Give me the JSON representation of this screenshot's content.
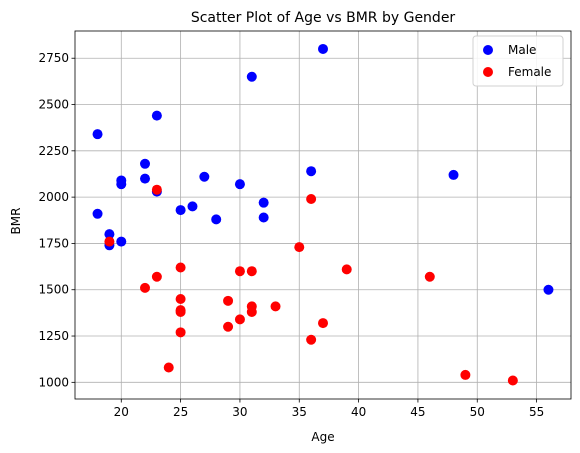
{
  "chart_data": {
    "type": "scatter",
    "title": "Scatter Plot of Age vs BMR by Gender",
    "xlabel": "Age",
    "ylabel": "BMR",
    "xlim": [
      16.1,
      57.9
    ],
    "ylim": [
      910,
      2897
    ],
    "xticks": [
      20,
      25,
      30,
      35,
      40,
      45,
      50,
      55
    ],
    "yticks": [
      1000,
      1250,
      1500,
      1750,
      2000,
      2250,
      2500,
      2750
    ],
    "grid": true,
    "legend_position": "top-right",
    "series": [
      {
        "name": "Male",
        "color": "#0000ff",
        "points": [
          [
            18,
            2340
          ],
          [
            18,
            1910
          ],
          [
            19,
            1800
          ],
          [
            19,
            1740
          ],
          [
            20,
            2090
          ],
          [
            20,
            2070
          ],
          [
            20,
            1760
          ],
          [
            22,
            2180
          ],
          [
            22,
            2100
          ],
          [
            23,
            2440
          ],
          [
            23,
            2030
          ],
          [
            25,
            1930
          ],
          [
            26,
            1950
          ],
          [
            27,
            2110
          ],
          [
            28,
            1880
          ],
          [
            30,
            2070
          ],
          [
            31,
            2650
          ],
          [
            32,
            1970
          ],
          [
            32,
            1890
          ],
          [
            36,
            2140
          ],
          [
            37,
            2800
          ],
          [
            48,
            2120
          ],
          [
            56,
            1500
          ]
        ]
      },
      {
        "name": "Female",
        "color": "#ff0000",
        "points": [
          [
            19,
            1760
          ],
          [
            22,
            1510
          ],
          [
            23,
            2040
          ],
          [
            23,
            1570
          ],
          [
            24,
            1080
          ],
          [
            25,
            1620
          ],
          [
            25,
            1450
          ],
          [
            25,
            1390
          ],
          [
            25,
            1380
          ],
          [
            25,
            1270
          ],
          [
            29,
            1440
          ],
          [
            29,
            1300
          ],
          [
            30,
            1600
          ],
          [
            30,
            1340
          ],
          [
            31,
            1600
          ],
          [
            31,
            1410
          ],
          [
            31,
            1380
          ],
          [
            33,
            1410
          ],
          [
            35,
            1730
          ],
          [
            36,
            1990
          ],
          [
            36,
            1230
          ],
          [
            37,
            1320
          ],
          [
            39,
            1610
          ],
          [
            46,
            1570
          ],
          [
            49,
            1040
          ],
          [
            53,
            1010
          ]
        ]
      }
    ]
  }
}
